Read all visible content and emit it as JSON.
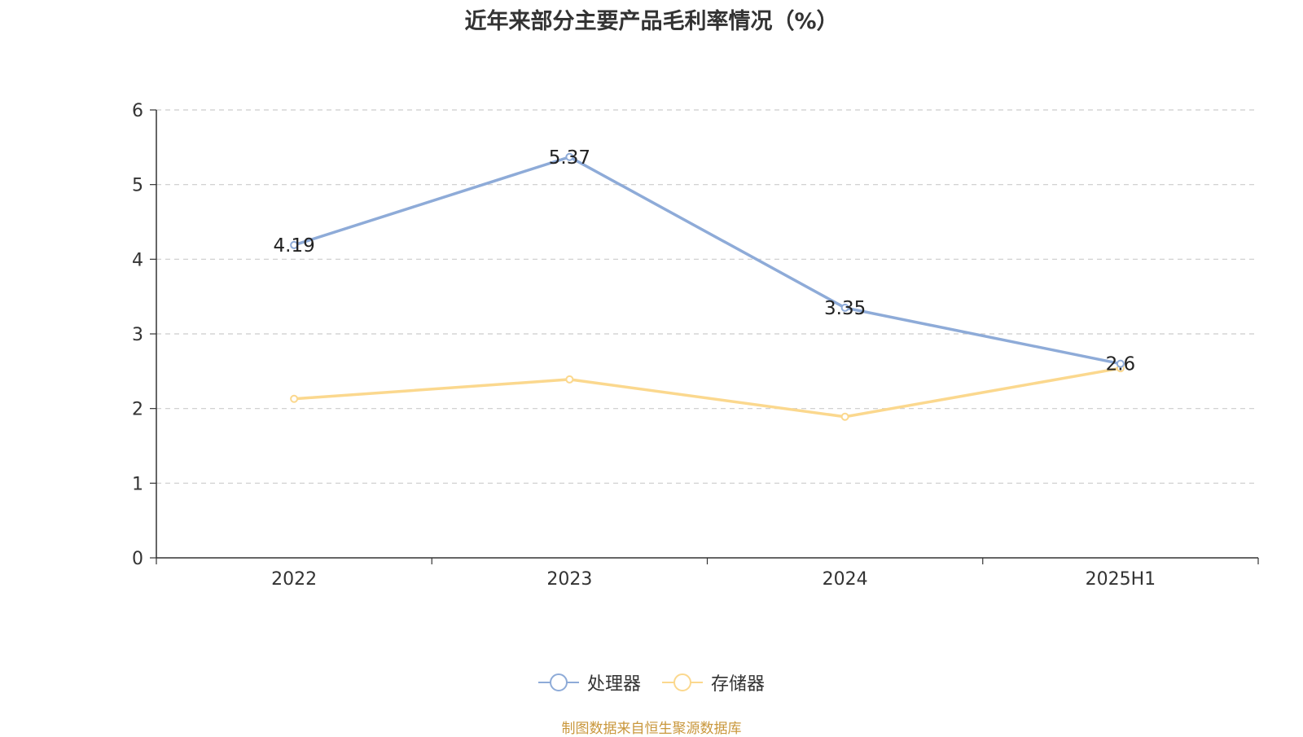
{
  "title": "近年来部分主要产品毛利率情况（%）",
  "source": "制图数据来自恒生聚源数据库",
  "chart_data": {
    "type": "line",
    "title": "近年来部分主要产品毛利率情况（%）",
    "xlabel": "",
    "ylabel": "",
    "categories": [
      "2022",
      "2023",
      "2024",
      "2025H1"
    ],
    "ylim": [
      0,
      6
    ],
    "yticks": [
      "0",
      "1",
      "2",
      "3",
      "4",
      "5",
      "6"
    ],
    "grid": "horizontal dashed",
    "legend_position": "bottom-center",
    "series": [
      {
        "name": "处理器",
        "values": [
          4.19,
          5.37,
          3.35,
          2.6
        ],
        "labels": [
          "4.19",
          "5.37",
          "3.35",
          "2.6"
        ],
        "color": "#8eabd8",
        "show_labels": true
      },
      {
        "name": "存储器",
        "values": [
          2.13,
          2.39,
          1.89,
          2.54
        ],
        "color": "#fbd88e",
        "show_labels": false
      }
    ]
  },
  "legend": {
    "items": [
      {
        "label": "处理器",
        "color": "#8eabd8"
      },
      {
        "label": "存储器",
        "color": "#fbd88e"
      }
    ]
  }
}
